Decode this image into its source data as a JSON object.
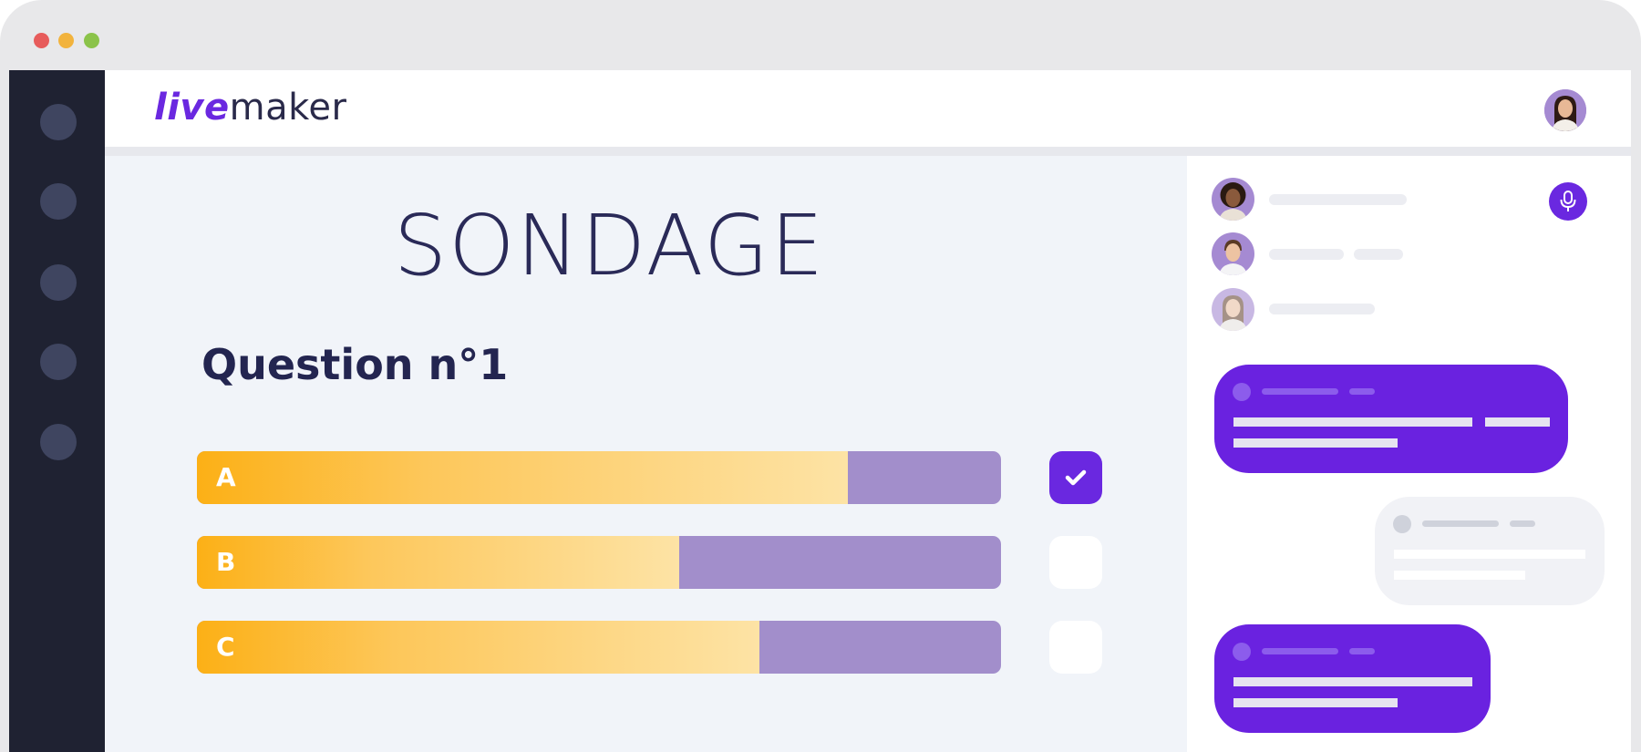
{
  "window": {
    "controls": [
      "close",
      "minimize",
      "maximize"
    ],
    "colors": {
      "close": "#e75c5c",
      "minimize": "#f2b33d",
      "maximize": "#8bc34a"
    }
  },
  "brand": {
    "live": "live",
    "maker": "maker",
    "accent": "#6a28e0"
  },
  "sidebar": {
    "items": [
      "nav-item",
      "nav-item",
      "nav-item",
      "nav-item",
      "nav-item"
    ]
  },
  "poll": {
    "title": "SONDAGE",
    "question": "Question n°1",
    "options": [
      {
        "label": "A",
        "fill_fraction": 0.81,
        "selected": true
      },
      {
        "label": "B",
        "fill_fraction": 0.6,
        "selected": false
      },
      {
        "label": "C",
        "fill_fraction": 0.7,
        "selected": false
      }
    ],
    "colors": {
      "bar_fill_start": "#fcb016",
      "bar_fill_end": "#fde3a5",
      "bar_remainder": "#a28ecb"
    }
  },
  "chat": {
    "participants": [
      "participant-1",
      "participant-2",
      "participant-3"
    ],
    "mic_icon": "microphone-icon",
    "bubble_color": "#6a22e0"
  }
}
